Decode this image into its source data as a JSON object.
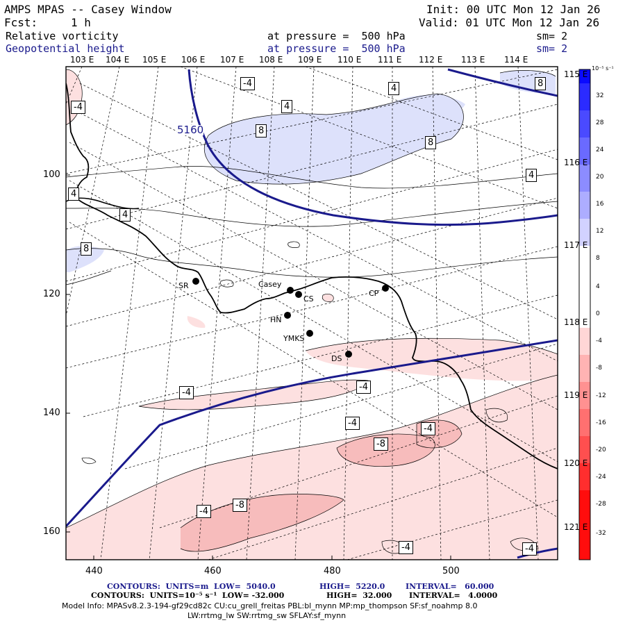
{
  "header": {
    "title": "AMPS MPAS -- Casey Window",
    "init": "Init: 00 UTC Mon 12 Jan 26",
    "fcst_label": "Fcst:",
    "fcst_value": "1 h",
    "valid": "Valid: 01 UTC Mon 12 Jan 26",
    "field1_name": "Relative vorticity",
    "field1_level": "at pressure =  500 hPa",
    "field1_smooth": "sm= 2",
    "field2_name": "Geopotential height",
    "field2_level": "at pressure =  500 hPa",
    "field2_smooth": "sm= 2"
  },
  "axes": {
    "lon_top": [
      "103 E",
      "104 E",
      "105 E",
      "106 E",
      "107 E",
      "108 E",
      "109 E",
      "110 E",
      "111 E",
      "112 E",
      "113 E",
      "114 E"
    ],
    "lon_right": [
      "115 E",
      "116 E",
      "117 E",
      "118 E",
      "119 E",
      "120 E",
      "121 E"
    ],
    "y_ticks": [
      "100",
      "120",
      "140",
      "160"
    ],
    "x_ticks": [
      "440",
      "460",
      "480",
      "500"
    ]
  },
  "colorbar": {
    "units": "10⁻⁵ s⁻¹",
    "labels": [
      "32",
      "28",
      "24",
      "20",
      "16",
      "12",
      "8",
      "4",
      "0",
      "-4",
      "-8",
      "-12",
      "-16",
      "-20",
      "-24",
      "-28",
      "-32"
    ],
    "colors": [
      "#0a0aff",
      "#2b2bff",
      "#4a4aff",
      "#6a6aff",
      "#8c8cff",
      "#adadff",
      "#d2d2ff",
      "#ffffff",
      "#ffffff",
      "#ffd6d6",
      "#ffb3b3",
      "#ff9191",
      "#ff7070",
      "#ff4f4f",
      "#ff2e2e",
      "#ff0d0d"
    ]
  },
  "stations": [
    {
      "name": "SR"
    },
    {
      "name": "Casey"
    },
    {
      "name": "CS"
    },
    {
      "name": "CP"
    },
    {
      "name": "HN"
    },
    {
      "name": "YMKS"
    },
    {
      "name": "DS"
    }
  ],
  "contour_labels": {
    "height": [
      "5160"
    ],
    "vorticity": [
      "-4",
      "4",
      "-4",
      "4",
      "8",
      "8",
      "8",
      "4",
      "4",
      "4",
      "8",
      "-4",
      "-4",
      "-4",
      "-4",
      "-8",
      "-8",
      "-4",
      "-4",
      "-4"
    ]
  },
  "footer": {
    "line1_prefix": "CONTOURS:  UNITS=m  LOW=  5040.0",
    "line1_high": "HIGH=  5220.0",
    "line1_interval": "INTERVAL=   60.000",
    "line2_prefix": "CONTOURS:  UNITS=10⁻⁵ s⁻¹  LOW= -32.000",
    "line2_high": "HIGH=  32.000",
    "line2_interval": "INTERVAL=   4.0000",
    "model_info": "Model Info: MPASv8.2.3-194-gf29cd82c CU:cu_grell_freitas PBL:bl_mynn MP:mp_thompson SF:sf_noahmp 8.0",
    "model_info2": "LW:rrtmg_lw SW:rrtmg_sw SFLAY:sf_mynn"
  }
}
